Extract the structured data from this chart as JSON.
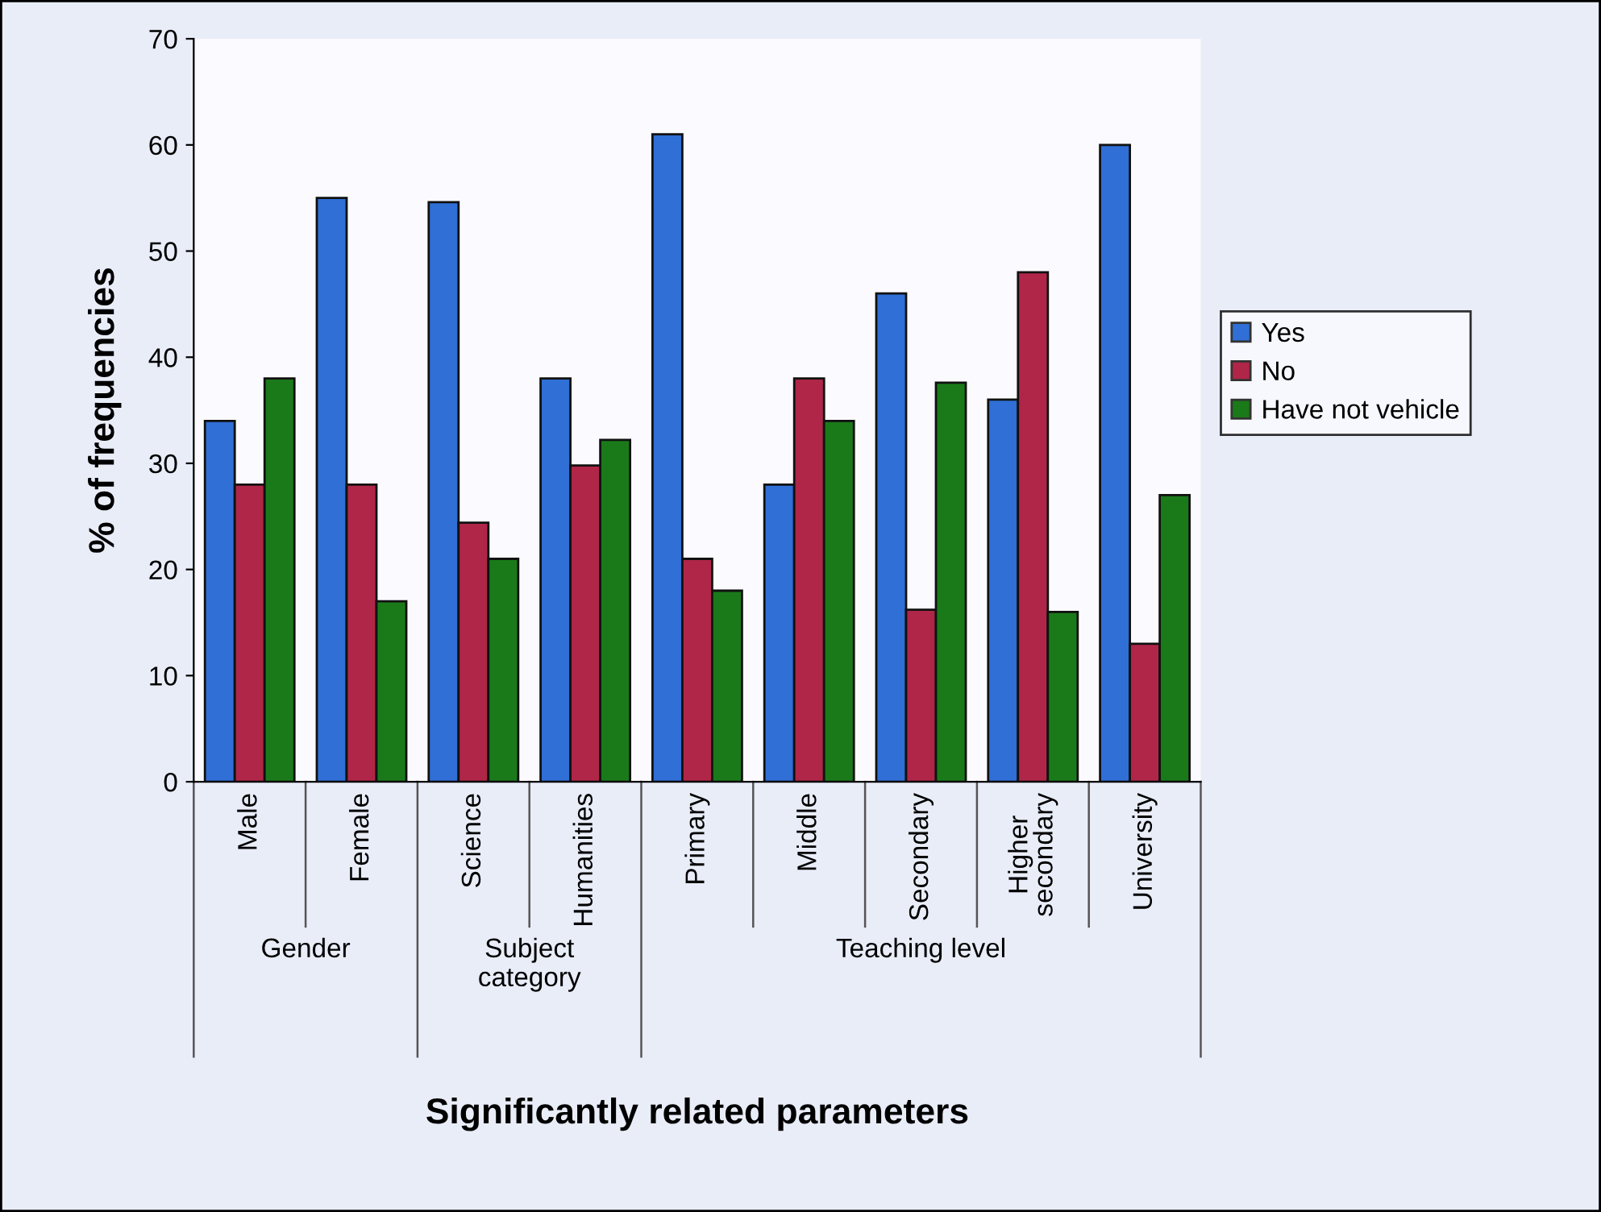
{
  "chart_data": {
    "type": "bar",
    "xlabel": "Significantly related parameters",
    "ylabel": "% of frequencies",
    "categories": [
      "Male",
      "Female",
      "Science",
      "Humanities",
      "Primary",
      "Middle",
      "Secondary",
      "Higher\nsecondary",
      "University"
    ],
    "series": [
      {
        "name": "Yes",
        "color": "#2f6fd6",
        "values": [
          34,
          55,
          54.6,
          38,
          61,
          28,
          46,
          36,
          60
        ]
      },
      {
        "name": "No",
        "color": "#b02648",
        "values": [
          28,
          28,
          24.4,
          29.8,
          21,
          38,
          16.2,
          48,
          13
        ]
      },
      {
        "name": "Have not vehicle",
        "color": "#1a7a1a",
        "values": [
          38,
          17,
          21,
          32.2,
          18,
          34,
          37.6,
          16,
          27
        ]
      }
    ],
    "annotations": [
      "Gender",
      "Subject\ncategory",
      "Teaching level"
    ],
    "ylim": [
      0,
      70
    ],
    "yticks": [
      0,
      10,
      20,
      30,
      40,
      50,
      60,
      70
    ],
    "grid": false,
    "legend": "right"
  }
}
